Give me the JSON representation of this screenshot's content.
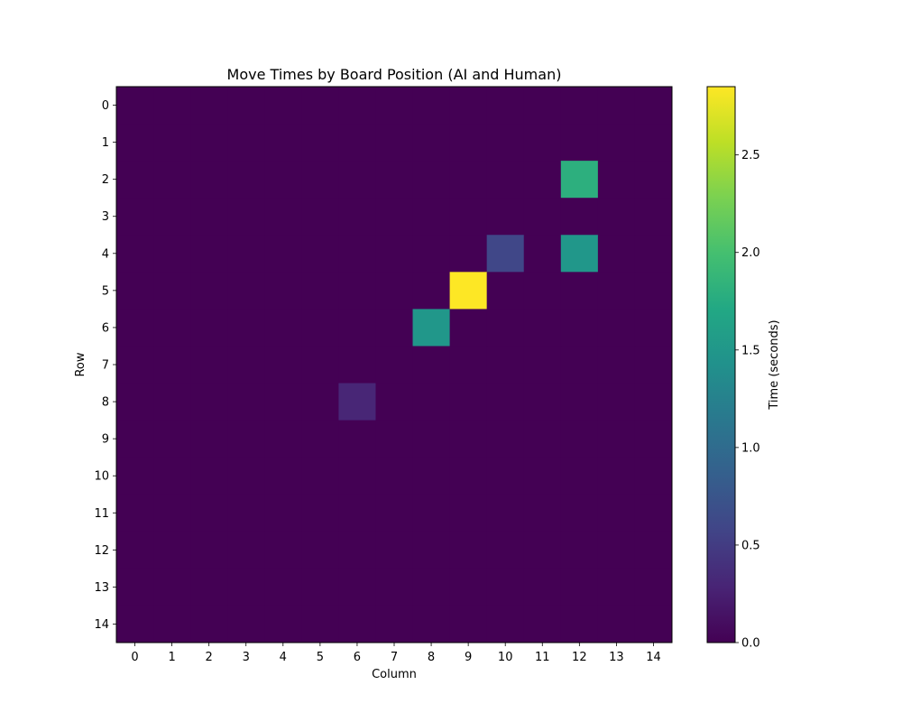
{
  "chart_data": {
    "type": "heatmap",
    "title": "Move Times by Board Position (AI and Human)",
    "xlabel": "Column",
    "ylabel": "Row",
    "colorbar_label": "Time (seconds)",
    "colormap": "viridis",
    "rows": 15,
    "cols": 15,
    "x_ticks": [
      0,
      1,
      2,
      3,
      4,
      5,
      6,
      7,
      8,
      9,
      10,
      11,
      12,
      13,
      14
    ],
    "y_ticks": [
      0,
      1,
      2,
      3,
      4,
      5,
      6,
      7,
      8,
      9,
      10,
      11,
      12,
      13,
      14
    ],
    "colorbar_ticks": [
      "0.0",
      "0.5",
      "1.0",
      "1.5",
      "2.0",
      "2.5"
    ],
    "clim": [
      0,
      2.85
    ],
    "cells": [
      {
        "row": 2,
        "col": 12,
        "value": 1.8
      },
      {
        "row": 4,
        "col": 10,
        "value": 0.6
      },
      {
        "row": 4,
        "col": 12,
        "value": 1.5
      },
      {
        "row": 5,
        "col": 9,
        "value": 2.85
      },
      {
        "row": 6,
        "col": 8,
        "value": 1.5
      },
      {
        "row": 8,
        "col": 6,
        "value": 0.3
      }
    ]
  }
}
